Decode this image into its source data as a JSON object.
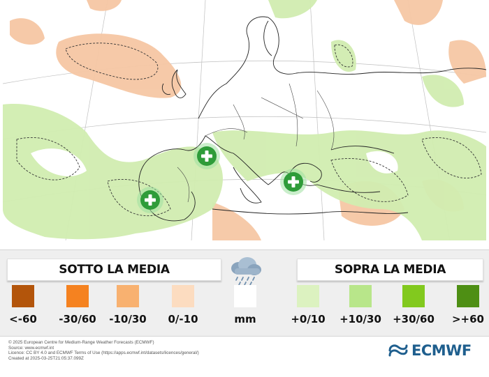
{
  "map": {
    "cross_marker_color": "#2e9c39",
    "land_below_color": "#f6c7a4",
    "land_above_color": "#d1edb0",
    "markers": [
      "plus-marker",
      "plus-marker",
      "plus-marker"
    ]
  },
  "legend": {
    "below_title": "SOTTO LA MEDIA",
    "above_title": "SOPRA LA MEDIA",
    "icon": "rain-cloud-icon",
    "classes": [
      {
        "label": "<-60",
        "color": "#b3550b"
      },
      {
        "label": "-30/60",
        "color": "#f58220"
      },
      {
        "label": "-10/30",
        "color": "#f8b170"
      },
      {
        "label": "0/-10",
        "color": "#fcdcc0"
      },
      {
        "label": "mm",
        "color": "#ffffff"
      },
      {
        "label": "+0/10",
        "color": "#dcf2c0"
      },
      {
        "label": "+10/30",
        "color": "#b8e68a"
      },
      {
        "label": "+30/60",
        "color": "#82c91e"
      },
      {
        "label": ">+60",
        "color": "#4e8f14"
      }
    ]
  },
  "credits": {
    "line1": "© 2025 European Centre for Medium-Range Weather Forecasts (ECMWF)",
    "line2": "Source: www.ecmwf.int",
    "line3": "Licence: CC BY 4.0 and ECMWF Terms of Use (https://apps.ecmwf.int/datasets/licences/general/)",
    "line4": "Created at 2025-03-25T21:05:37.099Z"
  },
  "brand": {
    "name": "ECMWF",
    "color": "#1f5f8e"
  }
}
